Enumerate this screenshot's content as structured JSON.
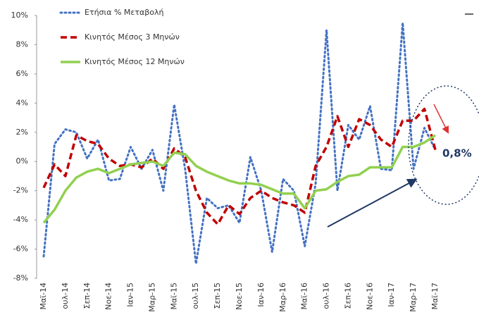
{
  "chart_data": {
    "type": "line",
    "categories": [
      "Μαϊ-14",
      null,
      "ουλ-14",
      null,
      "Σεπ-14",
      null,
      "Νοε-14",
      null,
      "Ιαν-15",
      null,
      "Μαρ-15",
      null,
      "Μαϊ-15",
      null,
      "ουλ-15",
      null,
      "Σεπ-15",
      null,
      "Νοε-15",
      null,
      "Ιαν-16",
      null,
      "Μαρ-16",
      null,
      "Μαϊ-16",
      null,
      "ουλ-16",
      null,
      "Σεπ-16",
      null,
      "Νοε-16",
      null,
      "Ιαν-17",
      null,
      "Μαρ-17",
      null,
      "Μαϊ-17"
    ],
    "series": [
      {
        "name": "Ετήσια % Μεταβολή",
        "color": "#4472c4",
        "style": "dotted",
        "values": [
          -6.5,
          1.2,
          2.2,
          2.0,
          0.2,
          1.5,
          -1.3,
          -1.2,
          1.0,
          -0.5,
          0.8,
          -2.0,
          3.9,
          -0.5,
          -7.0,
          -2.5,
          -3.2,
          -3.0,
          -4.2,
          0.3,
          -2.0,
          -6.2,
          -1.2,
          -2.0,
          -5.8,
          -1.5,
          9.0,
          -2.0,
          2.5,
          1.5,
          3.8,
          -0.5,
          -0.6,
          9.5,
          -0.5,
          2.3,
          0.8
        ]
      },
      {
        "name": "Κινητός Μέσος 3 Μηνών",
        "color": "#c00000",
        "style": "dashed",
        "values": [
          -1.8,
          -0.2,
          -1.0,
          1.8,
          1.4,
          1.2,
          0.2,
          -0.3,
          -0.2,
          -0.4,
          0.2,
          -0.5,
          0.9,
          0.3,
          -2.0,
          -3.5,
          -4.3,
          -3.0,
          -3.6,
          -2.5,
          -2.0,
          -2.5,
          -2.8,
          -3.0,
          -3.5,
          -0.3,
          1.0,
          3.1,
          1.0,
          2.9,
          2.5,
          1.5,
          1.0,
          2.8,
          2.8,
          3.6,
          0.8
        ]
      },
      {
        "name": "Κινητός Μέσος 12 Μηνών",
        "color": "#92d050",
        "style": "solid",
        "values": [
          -4.2,
          -3.3,
          -2.0,
          -1.1,
          -0.7,
          -0.5,
          -0.8,
          -0.5,
          -0.2,
          -0.1,
          0.0,
          -0.3,
          0.6,
          0.5,
          -0.3,
          -0.7,
          -1.0,
          -1.3,
          -1.5,
          -1.5,
          -1.6,
          -1.9,
          -2.2,
          -2.2,
          -3.2,
          -2.0,
          -1.9,
          -1.4,
          -1.0,
          -0.9,
          -0.4,
          -0.4,
          -0.4,
          1.0,
          1.0,
          1.3,
          1.8
        ]
      }
    ],
    "ylim": [
      -8,
      10
    ],
    "yticks": [
      {
        "value": -8,
        "label": "-8%"
      },
      {
        "value": -6,
        "label": "-6%"
      },
      {
        "value": -4,
        "label": "-4%"
      },
      {
        "value": -2,
        "label": "-2%"
      },
      {
        "value": 0,
        "label": "0%"
      },
      {
        "value": 2,
        "label": "2%"
      },
      {
        "value": 4,
        "label": "4%"
      },
      {
        "value": 6,
        "label": "6%"
      },
      {
        "value": 8,
        "label": "8%"
      },
      {
        "value": 10,
        "label": "10%"
      }
    ],
    "legend": "upper left",
    "annotation": "0,8%"
  }
}
